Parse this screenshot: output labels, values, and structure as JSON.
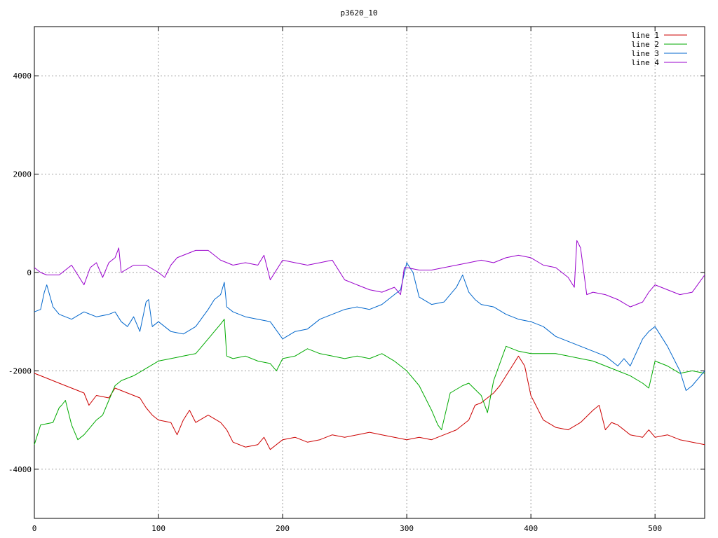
{
  "chart_data": {
    "type": "line",
    "title": "p3620_10",
    "xlabel": "",
    "ylabel": "",
    "xlim": [
      0,
      540
    ],
    "ylim": [
      -5000,
      5000
    ],
    "x_ticks": [
      0,
      100,
      200,
      300,
      400,
      500
    ],
    "y_ticks": [
      -4000,
      -2000,
      0,
      2000,
      4000
    ],
    "grid": true,
    "legend_position": "top-right",
    "series": [
      {
        "name": "line 1",
        "color": "#cc0000",
        "x": [
          0,
          5,
          10,
          20,
          30,
          40,
          44,
          50,
          60,
          65,
          70,
          80,
          85,
          90,
          95,
          100,
          110,
          115,
          120,
          125,
          130,
          140,
          150,
          155,
          160,
          170,
          180,
          185,
          190,
          200,
          210,
          220,
          230,
          240,
          250,
          260,
          270,
          280,
          290,
          300,
          310,
          320,
          330,
          340,
          350,
          355,
          360,
          365,
          370,
          375,
          380,
          385,
          390,
          395,
          400,
          410,
          420,
          430,
          440,
          450,
          455,
          460,
          465,
          470,
          480,
          490,
          495,
          500,
          510,
          520,
          530,
          540
        ],
        "y": [
          -2050,
          -2100,
          -2150,
          -2250,
          -2350,
          -2450,
          -2700,
          -2500,
          -2550,
          -2350,
          -2400,
          -2500,
          -2550,
          -2750,
          -2900,
          -3000,
          -3050,
          -3300,
          -3000,
          -2800,
          -3050,
          -2900,
          -3050,
          -3200,
          -3450,
          -3550,
          -3500,
          -3350,
          -3600,
          -3400,
          -3350,
          -3450,
          -3400,
          -3300,
          -3350,
          -3300,
          -3250,
          -3300,
          -3350,
          -3400,
          -3350,
          -3400,
          -3300,
          -3200,
          -3000,
          -2700,
          -2650,
          -2550,
          -2450,
          -2300,
          -2100,
          -1900,
          -1700,
          -1900,
          -2500,
          -3000,
          -3150,
          -3200,
          -3050,
          -2800,
          -2700,
          -3200,
          -3050,
          -3100,
          -3300,
          -3350,
          -3200,
          -3350,
          -3300,
          -3400,
          -3450,
          -3500
        ]
      },
      {
        "name": "line 2",
        "color": "#00aa00",
        "x": [
          0,
          5,
          15,
          20,
          22,
          25,
          30,
          35,
          40,
          45,
          50,
          55,
          60,
          65,
          70,
          80,
          90,
          100,
          110,
          120,
          130,
          140,
          145,
          150,
          153,
          155,
          160,
          170,
          180,
          190,
          195,
          200,
          210,
          220,
          230,
          240,
          250,
          260,
          270,
          280,
          290,
          300,
          310,
          320,
          325,
          328,
          335,
          345,
          350,
          360,
          365,
          370,
          380,
          390,
          400,
          410,
          420,
          430,
          440,
          450,
          460,
          470,
          480,
          490,
          495,
          500,
          510,
          520,
          530,
          540
        ],
        "y": [
          -3500,
          -3100,
          -3050,
          -2750,
          -2700,
          -2600,
          -3100,
          -3400,
          -3300,
          -3150,
          -3000,
          -2900,
          -2600,
          -2300,
          -2200,
          -2100,
          -1950,
          -1800,
          -1750,
          -1700,
          -1650,
          -1350,
          -1200,
          -1050,
          -950,
          -1700,
          -1750,
          -1700,
          -1800,
          -1850,
          -2000,
          -1750,
          -1700,
          -1550,
          -1650,
          -1700,
          -1750,
          -1700,
          -1750,
          -1650,
          -1800,
          -2000,
          -2300,
          -2800,
          -3100,
          -3200,
          -2450,
          -2300,
          -2250,
          -2500,
          -2850,
          -2200,
          -1500,
          -1600,
          -1650,
          -1650,
          -1650,
          -1700,
          -1750,
          -1800,
          -1900,
          -2000,
          -2100,
          -2250,
          -2350,
          -1800,
          -1900,
          -2050,
          -2000,
          -2050
        ]
      },
      {
        "name": "line 3",
        "color": "#0066cc",
        "x": [
          0,
          5,
          8,
          10,
          15,
          20,
          30,
          40,
          50,
          60,
          65,
          70,
          75,
          80,
          85,
          90,
          92,
          95,
          100,
          110,
          120,
          130,
          140,
          145,
          150,
          153,
          155,
          160,
          170,
          180,
          190,
          200,
          210,
          220,
          230,
          240,
          250,
          260,
          270,
          280,
          290,
          295,
          300,
          305,
          310,
          320,
          330,
          340,
          345,
          350,
          355,
          360,
          370,
          380,
          390,
          400,
          410,
          420,
          430,
          440,
          450,
          460,
          470,
          475,
          480,
          490,
          495,
          500,
          510,
          520,
          525,
          530,
          540
        ],
        "y": [
          -800,
          -750,
          -400,
          -250,
          -700,
          -850,
          -950,
          -800,
          -900,
          -850,
          -800,
          -1000,
          -1100,
          -900,
          -1200,
          -600,
          -550,
          -1100,
          -1000,
          -1200,
          -1250,
          -1100,
          -750,
          -550,
          -450,
          -200,
          -700,
          -800,
          -900,
          -950,
          -1000,
          -1350,
          -1200,
          -1150,
          -950,
          -850,
          -750,
          -700,
          -750,
          -650,
          -450,
          -350,
          200,
          0,
          -500,
          -650,
          -600,
          -300,
          -50,
          -400,
          -550,
          -650,
          -700,
          -850,
          -950,
          -1000,
          -1100,
          -1300,
          -1400,
          -1500,
          -1600,
          -1700,
          -1900,
          -1750,
          -1900,
          -1350,
          -1200,
          -1100,
          -1500,
          -2000,
          -2400,
          -2300,
          -2000
        ]
      },
      {
        "name": "line 4",
        "color": "#9900cc",
        "x": [
          0,
          5,
          10,
          20,
          30,
          40,
          45,
          50,
          55,
          60,
          65,
          68,
          70,
          80,
          90,
          100,
          105,
          110,
          115,
          120,
          130,
          140,
          150,
          160,
          170,
          180,
          185,
          190,
          200,
          210,
          220,
          230,
          240,
          250,
          260,
          270,
          280,
          290,
          295,
          298,
          300,
          310,
          320,
          330,
          340,
          350,
          360,
          370,
          380,
          390,
          400,
          410,
          420,
          430,
          435,
          437,
          440,
          445,
          450,
          460,
          470,
          480,
          490,
          495,
          500,
          510,
          520,
          530,
          540
        ],
        "y": [
          100,
          0,
          -50,
          -50,
          150,
          -250,
          100,
          200,
          -100,
          200,
          300,
          500,
          0,
          150,
          150,
          0,
          -100,
          150,
          300,
          350,
          450,
          450,
          250,
          150,
          200,
          150,
          350,
          -150,
          250,
          200,
          150,
          200,
          250,
          -150,
          -250,
          -350,
          -400,
          -300,
          -450,
          100,
          100,
          50,
          50,
          100,
          150,
          200,
          250,
          200,
          300,
          350,
          300,
          150,
          100,
          -100,
          -300,
          650,
          500,
          -450,
          -400,
          -450,
          -550,
          -700,
          -600,
          -400,
          -250,
          -350,
          -450,
          -400,
          -50
        ]
      }
    ]
  }
}
